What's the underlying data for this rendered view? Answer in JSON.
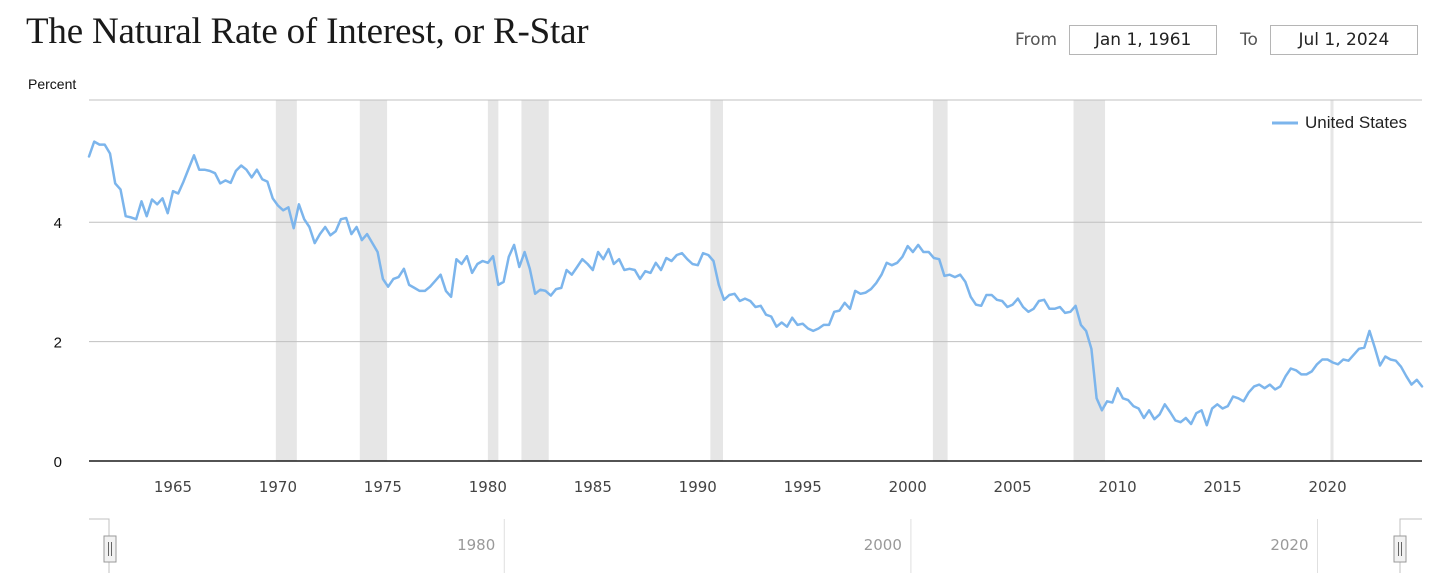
{
  "title": "The Natural Rate of Interest, or R-Star",
  "date_range": {
    "from_label": "From",
    "from_value": "Jan 1, 1961",
    "to_label": "To",
    "to_value": "Jul 1, 2024"
  },
  "colors": {
    "series": "#7cb5ec",
    "recession": "#e6e6e6",
    "gridline": "#c0c0c0",
    "baseline": "#1a1a1a"
  },
  "chart_data": {
    "type": "line",
    "ylabel": "Percent",
    "xlabel": "",
    "xlim": [
      1961.0,
      2024.5
    ],
    "ylim": [
      0,
      6
    ],
    "yticks": [
      0,
      2,
      4
    ],
    "xticks": [
      1965,
      1970,
      1975,
      1980,
      1985,
      1990,
      1995,
      2000,
      2005,
      2010,
      2015,
      2020
    ],
    "grid": true,
    "legend_position": "top-right",
    "recessions": [
      [
        1969.9,
        1970.9
      ],
      [
        1973.9,
        1975.2
      ],
      [
        1980.0,
        1980.5
      ],
      [
        1981.6,
        1982.9
      ],
      [
        1990.6,
        1991.2
      ],
      [
        2001.2,
        2001.9
      ],
      [
        2007.9,
        2009.4
      ]
    ],
    "series": [
      {
        "name": "United States",
        "points": [
          [
            1961.0,
            5.1
          ],
          [
            1961.25,
            5.35
          ],
          [
            1961.5,
            5.3
          ],
          [
            1961.75,
            5.3
          ],
          [
            1962.0,
            5.15
          ],
          [
            1962.25,
            4.65
          ],
          [
            1962.5,
            4.55
          ],
          [
            1962.75,
            4.1
          ],
          [
            1963.0,
            4.08
          ],
          [
            1963.25,
            4.05
          ],
          [
            1963.5,
            4.35
          ],
          [
            1963.75,
            4.1
          ],
          [
            1964.0,
            4.38
          ],
          [
            1964.25,
            4.3
          ],
          [
            1964.5,
            4.4
          ],
          [
            1964.75,
            4.15
          ],
          [
            1965.0,
            4.52
          ],
          [
            1965.25,
            4.48
          ],
          [
            1965.5,
            4.68
          ],
          [
            1965.75,
            4.9
          ],
          [
            1966.0,
            5.12
          ],
          [
            1966.25,
            4.88
          ],
          [
            1966.5,
            4.88
          ],
          [
            1966.75,
            4.86
          ],
          [
            1967.0,
            4.82
          ],
          [
            1967.25,
            4.65
          ],
          [
            1967.5,
            4.7
          ],
          [
            1967.75,
            4.66
          ],
          [
            1968.0,
            4.86
          ],
          [
            1968.25,
            4.95
          ],
          [
            1968.5,
            4.88
          ],
          [
            1968.75,
            4.75
          ],
          [
            1969.0,
            4.88
          ],
          [
            1969.25,
            4.72
          ],
          [
            1969.5,
            4.68
          ],
          [
            1969.75,
            4.4
          ],
          [
            1970.0,
            4.28
          ],
          [
            1970.25,
            4.2
          ],
          [
            1970.5,
            4.25
          ],
          [
            1970.75,
            3.9
          ],
          [
            1971.0,
            4.3
          ],
          [
            1971.25,
            4.05
          ],
          [
            1971.5,
            3.92
          ],
          [
            1971.75,
            3.65
          ],
          [
            1972.0,
            3.8
          ],
          [
            1972.25,
            3.92
          ],
          [
            1972.5,
            3.78
          ],
          [
            1972.75,
            3.85
          ],
          [
            1973.0,
            4.05
          ],
          [
            1973.25,
            4.07
          ],
          [
            1973.5,
            3.8
          ],
          [
            1973.75,
            3.92
          ],
          [
            1974.0,
            3.7
          ],
          [
            1974.25,
            3.8
          ],
          [
            1974.5,
            3.65
          ],
          [
            1974.75,
            3.5
          ],
          [
            1975.0,
            3.05
          ],
          [
            1975.25,
            2.92
          ],
          [
            1975.5,
            3.05
          ],
          [
            1975.75,
            3.08
          ],
          [
            1976.0,
            3.22
          ],
          [
            1976.25,
            2.95
          ],
          [
            1976.5,
            2.9
          ],
          [
            1976.75,
            2.85
          ],
          [
            1977.0,
            2.85
          ],
          [
            1977.25,
            2.92
          ],
          [
            1977.5,
            3.02
          ],
          [
            1977.75,
            3.12
          ],
          [
            1978.0,
            2.85
          ],
          [
            1978.25,
            2.75
          ],
          [
            1978.5,
            3.38
          ],
          [
            1978.75,
            3.3
          ],
          [
            1979.0,
            3.43
          ],
          [
            1979.25,
            3.15
          ],
          [
            1979.5,
            3.3
          ],
          [
            1979.75,
            3.35
          ],
          [
            1980.0,
            3.32
          ],
          [
            1980.25,
            3.43
          ],
          [
            1980.5,
            2.95
          ],
          [
            1980.75,
            3.0
          ],
          [
            1981.0,
            3.42
          ],
          [
            1981.25,
            3.62
          ],
          [
            1981.5,
            3.25
          ],
          [
            1981.75,
            3.5
          ],
          [
            1982.0,
            3.22
          ],
          [
            1982.25,
            2.8
          ],
          [
            1982.5,
            2.87
          ],
          [
            1982.75,
            2.85
          ],
          [
            1983.0,
            2.77
          ],
          [
            1983.25,
            2.88
          ],
          [
            1983.5,
            2.9
          ],
          [
            1983.75,
            3.2
          ],
          [
            1984.0,
            3.12
          ],
          [
            1984.25,
            3.25
          ],
          [
            1984.5,
            3.38
          ],
          [
            1984.75,
            3.3
          ],
          [
            1985.0,
            3.2
          ],
          [
            1985.25,
            3.5
          ],
          [
            1985.5,
            3.38
          ],
          [
            1985.75,
            3.55
          ],
          [
            1986.0,
            3.3
          ],
          [
            1986.25,
            3.38
          ],
          [
            1986.5,
            3.2
          ],
          [
            1986.75,
            3.22
          ],
          [
            1987.0,
            3.2
          ],
          [
            1987.25,
            3.05
          ],
          [
            1987.5,
            3.18
          ],
          [
            1987.75,
            3.15
          ],
          [
            1988.0,
            3.32
          ],
          [
            1988.25,
            3.2
          ],
          [
            1988.5,
            3.4
          ],
          [
            1988.75,
            3.35
          ],
          [
            1989.0,
            3.45
          ],
          [
            1989.25,
            3.48
          ],
          [
            1989.5,
            3.38
          ],
          [
            1989.75,
            3.3
          ],
          [
            1990.0,
            3.28
          ],
          [
            1990.25,
            3.48
          ],
          [
            1990.5,
            3.45
          ],
          [
            1990.75,
            3.35
          ],
          [
            1991.0,
            2.95
          ],
          [
            1991.25,
            2.7
          ],
          [
            1991.5,
            2.78
          ],
          [
            1991.75,
            2.8
          ],
          [
            1992.0,
            2.68
          ],
          [
            1992.25,
            2.72
          ],
          [
            1992.5,
            2.68
          ],
          [
            1992.75,
            2.58
          ],
          [
            1993.0,
            2.6
          ],
          [
            1993.25,
            2.45
          ],
          [
            1993.5,
            2.42
          ],
          [
            1993.75,
            2.25
          ],
          [
            1994.0,
            2.32
          ],
          [
            1994.25,
            2.25
          ],
          [
            1994.5,
            2.4
          ],
          [
            1994.75,
            2.28
          ],
          [
            1995.0,
            2.3
          ],
          [
            1995.25,
            2.22
          ],
          [
            1995.5,
            2.18
          ],
          [
            1995.75,
            2.22
          ],
          [
            1996.0,
            2.28
          ],
          [
            1996.25,
            2.28
          ],
          [
            1996.5,
            2.5
          ],
          [
            1996.75,
            2.52
          ],
          [
            1997.0,
            2.65
          ],
          [
            1997.25,
            2.55
          ],
          [
            1997.5,
            2.85
          ],
          [
            1997.75,
            2.8
          ],
          [
            1998.0,
            2.82
          ],
          [
            1998.25,
            2.88
          ],
          [
            1998.5,
            2.98
          ],
          [
            1998.75,
            3.12
          ],
          [
            1999.0,
            3.32
          ],
          [
            1999.25,
            3.28
          ],
          [
            1999.5,
            3.32
          ],
          [
            1999.75,
            3.42
          ],
          [
            2000.0,
            3.6
          ],
          [
            2000.25,
            3.5
          ],
          [
            2000.5,
            3.62
          ],
          [
            2000.75,
            3.5
          ],
          [
            2001.0,
            3.5
          ],
          [
            2001.25,
            3.4
          ],
          [
            2001.5,
            3.38
          ],
          [
            2001.75,
            3.1
          ],
          [
            2002.0,
            3.12
          ],
          [
            2002.25,
            3.08
          ],
          [
            2002.5,
            3.12
          ],
          [
            2002.75,
            3.0
          ],
          [
            2003.0,
            2.75
          ],
          [
            2003.25,
            2.62
          ],
          [
            2003.5,
            2.6
          ],
          [
            2003.75,
            2.78
          ],
          [
            2004.0,
            2.78
          ],
          [
            2004.25,
            2.7
          ],
          [
            2004.5,
            2.68
          ],
          [
            2004.75,
            2.58
          ],
          [
            2005.0,
            2.62
          ],
          [
            2005.25,
            2.72
          ],
          [
            2005.5,
            2.58
          ],
          [
            2005.75,
            2.5
          ],
          [
            2006.0,
            2.55
          ],
          [
            2006.25,
            2.68
          ],
          [
            2006.5,
            2.7
          ],
          [
            2006.75,
            2.55
          ],
          [
            2007.0,
            2.55
          ],
          [
            2007.25,
            2.58
          ],
          [
            2007.5,
            2.48
          ],
          [
            2007.75,
            2.5
          ],
          [
            2008.0,
            2.6
          ],
          [
            2008.25,
            2.28
          ],
          [
            2008.5,
            2.18
          ],
          [
            2008.75,
            1.88
          ],
          [
            2009.0,
            1.05
          ],
          [
            2009.25,
            0.85
          ],
          [
            2009.5,
            1.0
          ],
          [
            2009.75,
            0.98
          ],
          [
            2010.0,
            1.22
          ],
          [
            2010.25,
            1.05
          ],
          [
            2010.5,
            1.02
          ],
          [
            2010.75,
            0.92
          ],
          [
            2011.0,
            0.88
          ],
          [
            2011.25,
            0.72
          ],
          [
            2011.5,
            0.85
          ],
          [
            2011.75,
            0.7
          ],
          [
            2012.0,
            0.78
          ],
          [
            2012.25,
            0.95
          ],
          [
            2012.5,
            0.82
          ],
          [
            2012.75,
            0.68
          ],
          [
            2013.0,
            0.65
          ],
          [
            2013.25,
            0.72
          ],
          [
            2013.5,
            0.62
          ],
          [
            2013.75,
            0.8
          ],
          [
            2014.0,
            0.85
          ],
          [
            2014.25,
            0.6
          ],
          [
            2014.5,
            0.88
          ],
          [
            2014.75,
            0.95
          ],
          [
            2015.0,
            0.88
          ],
          [
            2015.25,
            0.92
          ],
          [
            2015.5,
            1.08
          ],
          [
            2015.75,
            1.05
          ],
          [
            2016.0,
            1.0
          ],
          [
            2016.25,
            1.15
          ],
          [
            2016.5,
            1.25
          ],
          [
            2016.75,
            1.28
          ],
          [
            2017.0,
            1.22
          ],
          [
            2017.25,
            1.28
          ],
          [
            2017.5,
            1.2
          ],
          [
            2017.75,
            1.25
          ],
          [
            2018.0,
            1.42
          ],
          [
            2018.25,
            1.55
          ],
          [
            2018.5,
            1.52
          ],
          [
            2018.75,
            1.45
          ],
          [
            2019.0,
            1.45
          ],
          [
            2019.25,
            1.5
          ],
          [
            2019.5,
            1.62
          ],
          [
            2019.75,
            1.7
          ],
          [
            2020.0,
            1.7
          ],
          [
            2020.25,
            1.65
          ],
          [
            2020.5,
            1.62
          ],
          [
            2020.75,
            1.7
          ],
          [
            2021.0,
            1.68
          ],
          [
            2021.25,
            1.78
          ],
          [
            2021.5,
            1.88
          ],
          [
            2021.75,
            1.9
          ],
          [
            2022.0,
            2.18
          ],
          [
            2022.25,
            1.9
          ],
          [
            2022.5,
            1.6
          ],
          [
            2022.75,
            1.75
          ],
          [
            2023.0,
            1.7
          ],
          [
            2023.25,
            1.68
          ],
          [
            2023.5,
            1.58
          ],
          [
            2023.75,
            1.42
          ],
          [
            2024.0,
            1.28
          ],
          [
            2024.25,
            1.36
          ],
          [
            2024.5,
            1.25
          ]
        ]
      }
    ]
  },
  "navigator": {
    "labels": [
      "1980",
      "2000",
      "2020"
    ]
  }
}
